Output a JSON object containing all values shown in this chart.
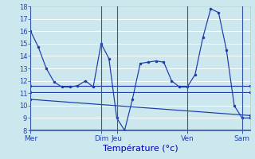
{
  "background_color": "#cce8ee",
  "line_color": "#1a3aaa",
  "grid_color": "#b0d8e0",
  "xlabel": "Température (°c)",
  "ylim": [
    8,
    18
  ],
  "yticks": [
    8,
    9,
    10,
    11,
    12,
    13,
    14,
    15,
    16,
    17,
    18
  ],
  "day_labels": [
    "Mer",
    "Dim",
    "Jeu",
    "Ven",
    "Sam"
  ],
  "day_vline_positions": [
    0,
    9,
    11,
    20,
    27
  ],
  "day_tick_positions": [
    0,
    9,
    11,
    20,
    27
  ],
  "xlim": [
    0,
    28
  ],
  "lines": [
    {
      "x": [
        0,
        1,
        2,
        3,
        4,
        5,
        6,
        7,
        8,
        9,
        10,
        11,
        12,
        13,
        14,
        15,
        16,
        17,
        18,
        19,
        20,
        21,
        22,
        23,
        24,
        25,
        26,
        27,
        28
      ],
      "y": [
        16,
        14.7,
        13.0,
        11.9,
        11.5,
        11.5,
        11.6,
        12.0,
        11.5,
        15.0,
        13.8,
        9.0,
        8.0,
        10.5,
        13.4,
        13.5,
        13.6,
        13.5,
        12.0,
        11.5,
        11.5,
        12.5,
        15.5,
        17.8,
        17.5,
        14.5,
        10.0,
        9.0,
        9.0
      ]
    },
    {
      "x": [
        0,
        28
      ],
      "y": [
        11.6,
        11.6
      ]
    },
    {
      "x": [
        0,
        28
      ],
      "y": [
        11.1,
        11.1
      ]
    },
    {
      "x": [
        0,
        28
      ],
      "y": [
        10.5,
        9.2
      ]
    }
  ]
}
